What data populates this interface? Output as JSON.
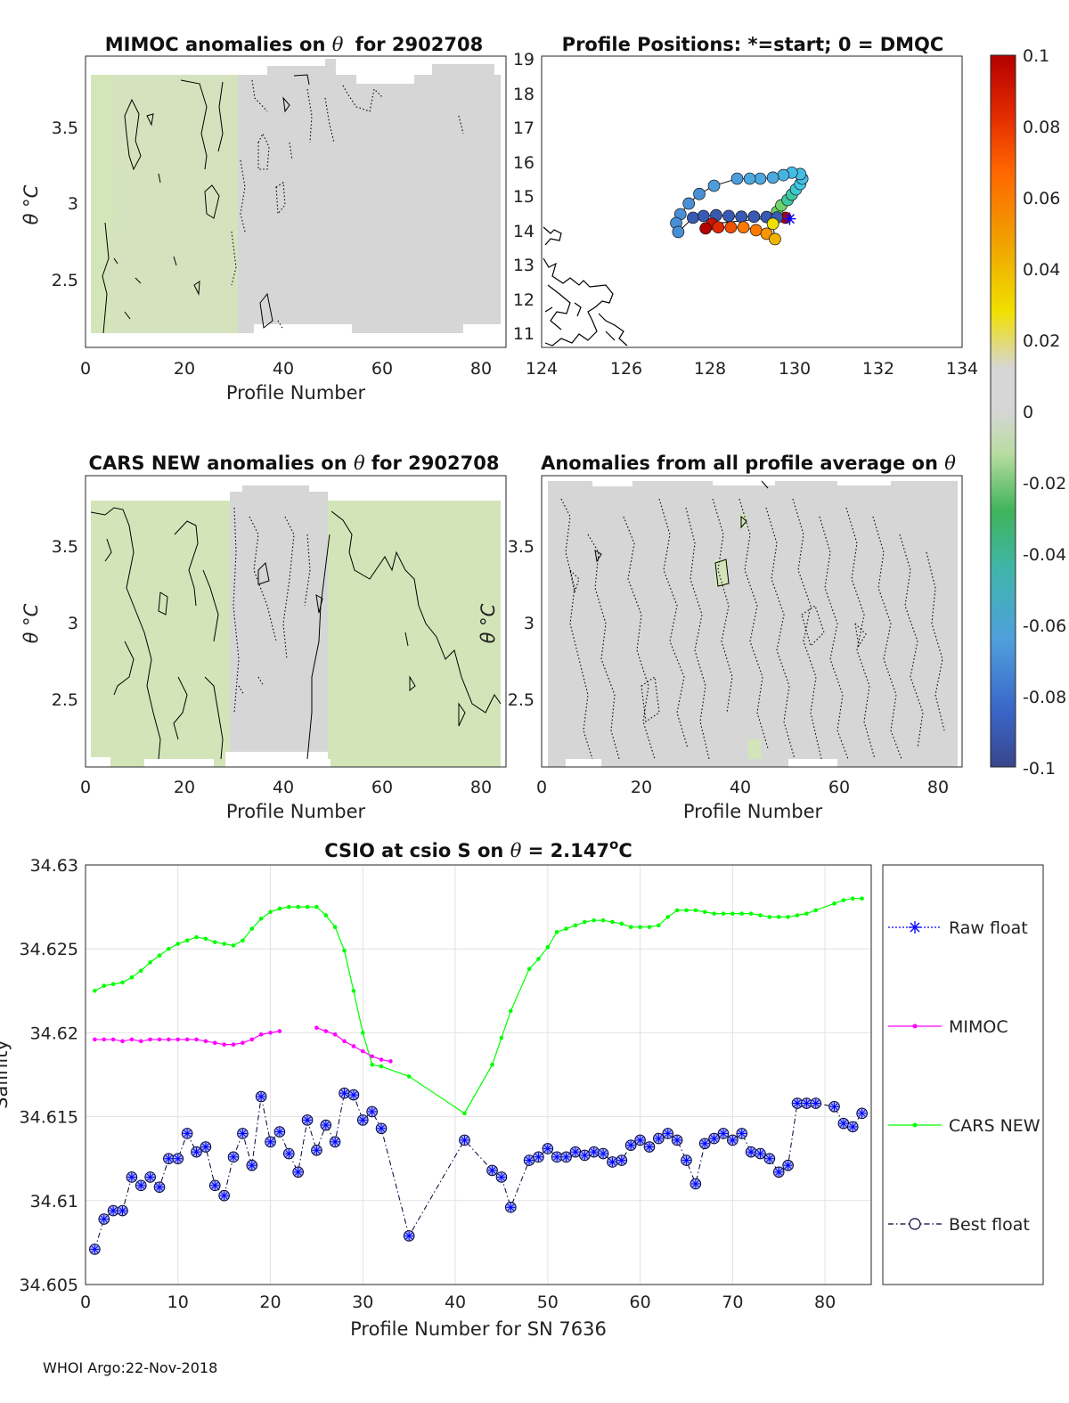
{
  "footer": "WHOI Argo:22-Nov-2018",
  "panels": {
    "mimoc": {
      "title_prefix": "MIMOC anomalies on",
      "title_suffix": "for 2902708",
      "theta": "θ",
      "xlabel": "Profile Number",
      "ylabel": "θ °C",
      "xticks": [
        "0",
        "20",
        "40",
        "60",
        "80"
      ],
      "yticks": [
        "3.5",
        "3",
        "2.5"
      ]
    },
    "positions": {
      "title": "Profile Positions: *=start; 0 = DMQC",
      "xticks": [
        "124",
        "126",
        "128",
        "130",
        "132",
        "134"
      ],
      "yticks": [
        "19",
        "18",
        "17",
        "16",
        "15",
        "14",
        "13",
        "12",
        "11"
      ]
    },
    "cars": {
      "title_prefix": "CARS NEW anomalies on",
      "title_suffix": "for 2902708",
      "theta": "θ",
      "xlabel": "Profile Number",
      "ylabel": "θ °C",
      "xticks": [
        "0",
        "20",
        "40",
        "60",
        "80"
      ],
      "yticks": [
        "3.5",
        "3",
        "2.5"
      ]
    },
    "allavg": {
      "title_prefix": "Anomalies from all profile average on",
      "theta": "θ",
      "xlabel": "Profile Number",
      "ylabel": "θ °C",
      "xticks": [
        "0",
        "20",
        "40",
        "60",
        "80"
      ],
      "yticks": [
        "3.5",
        "3",
        "2.5"
      ]
    }
  },
  "colorbar": {
    "ticks": [
      "0.1",
      "0.08",
      "0.06",
      "0.04",
      "0.02",
      "0",
      "-0.02",
      "-0.04",
      "-0.06",
      "-0.08",
      "-0.1"
    ]
  },
  "colors": {
    "raw": "#0000ff",
    "mimoc": "#ff00ff",
    "cars": "#00ff00",
    "best": "#000033",
    "marker_fill": "#a8b4ee",
    "field_gray": "#d6d6d6",
    "field_green": "#d3e5b8"
  },
  "chart_data": [
    {
      "type": "heatmap",
      "title": "MIMOC anomalies on θ for 2902708",
      "xlabel": "Profile Number",
      "ylabel": "θ °C",
      "xlim": [
        0,
        85
      ],
      "ylim": [
        2.05,
        3.95
      ],
      "note_fields": "anomaly field mostly ≈0 with slight negative (green) values on left third"
    },
    {
      "type": "scatter",
      "title": "Profile Positions: *=start; 0 = DMQC",
      "xlim": [
        124,
        134
      ],
      "ylim": [
        10.8,
        19
      ],
      "start": {
        "lon": 129.9,
        "lat": 14.42
      },
      "points": [
        {
          "lon": 129.8,
          "lat": 14.45,
          "c": 0.1
        },
        {
          "lon": 129.6,
          "lat": 14.62,
          "c": -0.02
        },
        {
          "lon": 129.7,
          "lat": 14.8,
          "c": -0.02
        },
        {
          "lon": 129.85,
          "lat": 14.95,
          "c": -0.03
        },
        {
          "lon": 129.95,
          "lat": 15.1,
          "c": -0.03
        },
        {
          "lon": 130.05,
          "lat": 15.25,
          "c": -0.04
        },
        {
          "lon": 130.15,
          "lat": 15.4,
          "c": -0.045
        },
        {
          "lon": 130.2,
          "lat": 15.55,
          "c": -0.05
        },
        {
          "lon": 130.15,
          "lat": 15.68,
          "c": -0.05
        },
        {
          "lon": 129.95,
          "lat": 15.72,
          "c": -0.05
        },
        {
          "lon": 129.75,
          "lat": 15.65,
          "c": -0.055
        },
        {
          "lon": 129.5,
          "lat": 15.58,
          "c": -0.06
        },
        {
          "lon": 129.2,
          "lat": 15.55,
          "c": -0.06
        },
        {
          "lon": 128.95,
          "lat": 15.55,
          "c": -0.06
        },
        {
          "lon": 128.65,
          "lat": 15.55,
          "c": -0.065
        },
        {
          "lon": 128.1,
          "lat": 15.35,
          "c": -0.065
        },
        {
          "lon": 127.75,
          "lat": 15.12,
          "c": -0.07
        },
        {
          "lon": 127.5,
          "lat": 14.85,
          "c": -0.07
        },
        {
          "lon": 127.3,
          "lat": 14.55,
          "c": -0.07
        },
        {
          "lon": 127.2,
          "lat": 14.3,
          "c": -0.07
        },
        {
          "lon": 127.25,
          "lat": 14.05,
          "c": -0.07
        },
        {
          "lon": 127.6,
          "lat": 14.45,
          "c": -0.09
        },
        {
          "lon": 127.85,
          "lat": 14.5,
          "c": -0.09
        },
        {
          "lon": 128.15,
          "lat": 14.52,
          "c": -0.09
        },
        {
          "lon": 128.45,
          "lat": 14.5,
          "c": -0.09
        },
        {
          "lon": 128.75,
          "lat": 14.48,
          "c": -0.09
        },
        {
          "lon": 129.05,
          "lat": 14.48,
          "c": -0.09
        },
        {
          "lon": 129.35,
          "lat": 14.47,
          "c": -0.09
        },
        {
          "lon": 129.6,
          "lat": 14.46,
          "c": -0.09
        },
        {
          "lon": 128.05,
          "lat": 14.28,
          "c": 0.09
        },
        {
          "lon": 127.9,
          "lat": 14.15,
          "c": 0.1
        },
        {
          "lon": 128.2,
          "lat": 14.18,
          "c": 0.08
        },
        {
          "lon": 128.5,
          "lat": 14.18,
          "c": 0.07
        },
        {
          "lon": 128.8,
          "lat": 14.18,
          "c": 0.06
        },
        {
          "lon": 129.1,
          "lat": 14.1,
          "c": 0.06
        },
        {
          "lon": 129.35,
          "lat": 14.0,
          "c": 0.05
        },
        {
          "lon": 129.55,
          "lat": 13.85,
          "c": 0.04
        },
        {
          "lon": 129.5,
          "lat": 14.28,
          "c": 0.02
        }
      ]
    },
    {
      "type": "heatmap",
      "title": "CARS NEW anomalies on θ for 2902708",
      "xlabel": "Profile Number",
      "ylabel": "θ °C",
      "xlim": [
        0,
        85
      ],
      "ylim": [
        2.05,
        3.95
      ]
    },
    {
      "type": "heatmap",
      "title": "Anomalies from all profile average on θ",
      "xlabel": "Profile Number",
      "ylabel": "θ °C",
      "xlim": [
        0,
        85
      ],
      "ylim": [
        2.05,
        3.95
      ]
    },
    {
      "type": "line",
      "title": "CSIO at csio S on θ = 2.147°C",
      "title_prefix": "CSIO at csio S on",
      "title_eq": "= 2.147",
      "title_unit": "C",
      "theta": "θ",
      "deg": "o",
      "xlabel": "Profile Number for SN 7636",
      "ylabel": "Salinity",
      "xlim": [
        0,
        85
      ],
      "ylim": [
        34.605,
        34.63
      ],
      "xticks": [
        "0",
        "10",
        "20",
        "30",
        "40",
        "50",
        "60",
        "70",
        "80"
      ],
      "yticks": [
        "34.63",
        "34.625",
        "34.62",
        "34.615",
        "34.61",
        "34.605"
      ],
      "legend": [
        "Raw float",
        "MIMOC",
        "CARS NEW",
        "Best float"
      ],
      "legend_position": "right (outside)",
      "grid": true,
      "series": [
        {
          "name": "Raw float",
          "x": [
            1,
            2,
            3,
            4,
            5,
            6,
            7,
            8,
            9,
            10,
            11,
            12,
            13,
            14,
            15,
            16,
            17,
            18,
            19,
            20,
            21,
            22,
            23,
            24,
            25,
            26,
            27,
            28,
            29,
            30,
            31,
            32,
            35,
            41,
            44,
            45,
            46,
            48,
            49,
            50,
            51,
            52,
            53,
            54,
            55,
            56,
            57,
            58,
            59,
            60,
            61,
            62,
            63,
            64,
            65,
            66,
            67,
            68,
            69,
            70,
            71,
            72,
            73,
            74,
            75,
            76,
            77,
            78,
            79,
            81,
            82,
            83,
            84
          ],
          "values": [
            34.6071,
            34.6089,
            34.6094,
            34.6094,
            34.6114,
            34.6109,
            34.6114,
            34.6108,
            34.6125,
            34.6125,
            34.614,
            34.6129,
            34.6132,
            34.6109,
            34.6103,
            34.6126,
            34.614,
            34.6121,
            34.6162,
            34.6135,
            34.6141,
            34.6128,
            34.6117,
            34.6148,
            34.613,
            34.6145,
            34.6135,
            34.6164,
            34.6163,
            34.6148,
            34.6153,
            34.6143,
            34.6079,
            34.6136,
            34.6118,
            34.6114,
            34.6096,
            34.6124,
            34.6126,
            34.6131,
            34.6126,
            34.6126,
            34.6129,
            34.6127,
            34.6129,
            34.6128,
            34.6123,
            34.6124,
            34.6133,
            34.6136,
            34.6132,
            34.6137,
            34.614,
            34.6136,
            34.6124,
            34.611,
            34.6134,
            34.6137,
            34.614,
            34.6136,
            34.614,
            34.6129,
            34.6128,
            34.6125,
            34.6117,
            34.6121,
            34.6158,
            34.6158,
            34.6158,
            34.6156,
            34.6146,
            34.6144,
            34.6152
          ]
        },
        {
          "name": "MIMOC",
          "x": [
            1,
            2,
            3,
            4,
            5,
            6,
            7,
            8,
            9,
            10,
            11,
            12,
            13,
            14,
            15,
            16,
            17,
            18,
            19,
            20,
            21,
            25,
            26,
            27,
            28,
            29,
            30,
            31,
            32,
            33
          ],
          "values": [
            34.6196,
            34.6196,
            34.6196,
            34.6195,
            34.6196,
            34.6195,
            34.6196,
            34.6196,
            34.6196,
            34.6196,
            34.6196,
            34.6196,
            34.6195,
            34.6194,
            34.6193,
            34.6193,
            34.6194,
            34.6196,
            34.6199,
            34.62,
            34.6201,
            34.6203,
            34.6201,
            34.6199,
            34.6195,
            34.6192,
            34.6189,
            34.6186,
            34.6184,
            34.6183
          ]
        },
        {
          "name": "CARS NEW",
          "x": [
            1,
            2,
            3,
            4,
            5,
            6,
            7,
            8,
            9,
            10,
            11,
            12,
            13,
            14,
            15,
            16,
            17,
            18,
            19,
            20,
            21,
            22,
            23,
            24,
            25,
            26,
            27,
            28,
            29,
            30,
            31,
            32,
            35,
            41,
            44,
            45,
            46,
            48,
            49,
            50,
            51,
            52,
            53,
            54,
            55,
            56,
            57,
            58,
            59,
            60,
            61,
            62,
            63,
            64,
            65,
            66,
            67,
            68,
            69,
            70,
            71,
            72,
            73,
            74,
            75,
            76,
            77,
            78,
            79,
            81,
            82,
            83,
            84
          ],
          "values": [
            34.6225,
            34.6228,
            34.6229,
            34.623,
            34.6233,
            34.6237,
            34.6242,
            34.6246,
            34.625,
            34.6253,
            34.6255,
            34.6257,
            34.6256,
            34.6254,
            34.6253,
            34.6252,
            34.6255,
            34.6262,
            34.6268,
            34.6272,
            34.6274,
            34.6275,
            34.6275,
            34.6275,
            34.6275,
            34.627,
            34.6263,
            34.6249,
            34.6225,
            34.62,
            34.6181,
            34.618,
            34.6174,
            34.6152,
            34.6181,
            34.6197,
            34.6213,
            34.6238,
            34.6244,
            34.6251,
            34.626,
            34.6262,
            34.6264,
            34.6266,
            34.6267,
            34.6267,
            34.6266,
            34.6265,
            34.6263,
            34.6263,
            34.6263,
            34.6264,
            34.6269,
            34.6273,
            34.6273,
            34.6273,
            34.6272,
            34.6271,
            34.6271,
            34.6271,
            34.6271,
            34.6271,
            34.627,
            34.6269,
            34.6269,
            34.6269,
            34.627,
            34.6271,
            34.6273,
            34.6277,
            34.6279,
            34.628,
            34.628
          ]
        },
        {
          "name": "Best float",
          "note": "same x/values as Raw float"
        }
      ]
    }
  ]
}
